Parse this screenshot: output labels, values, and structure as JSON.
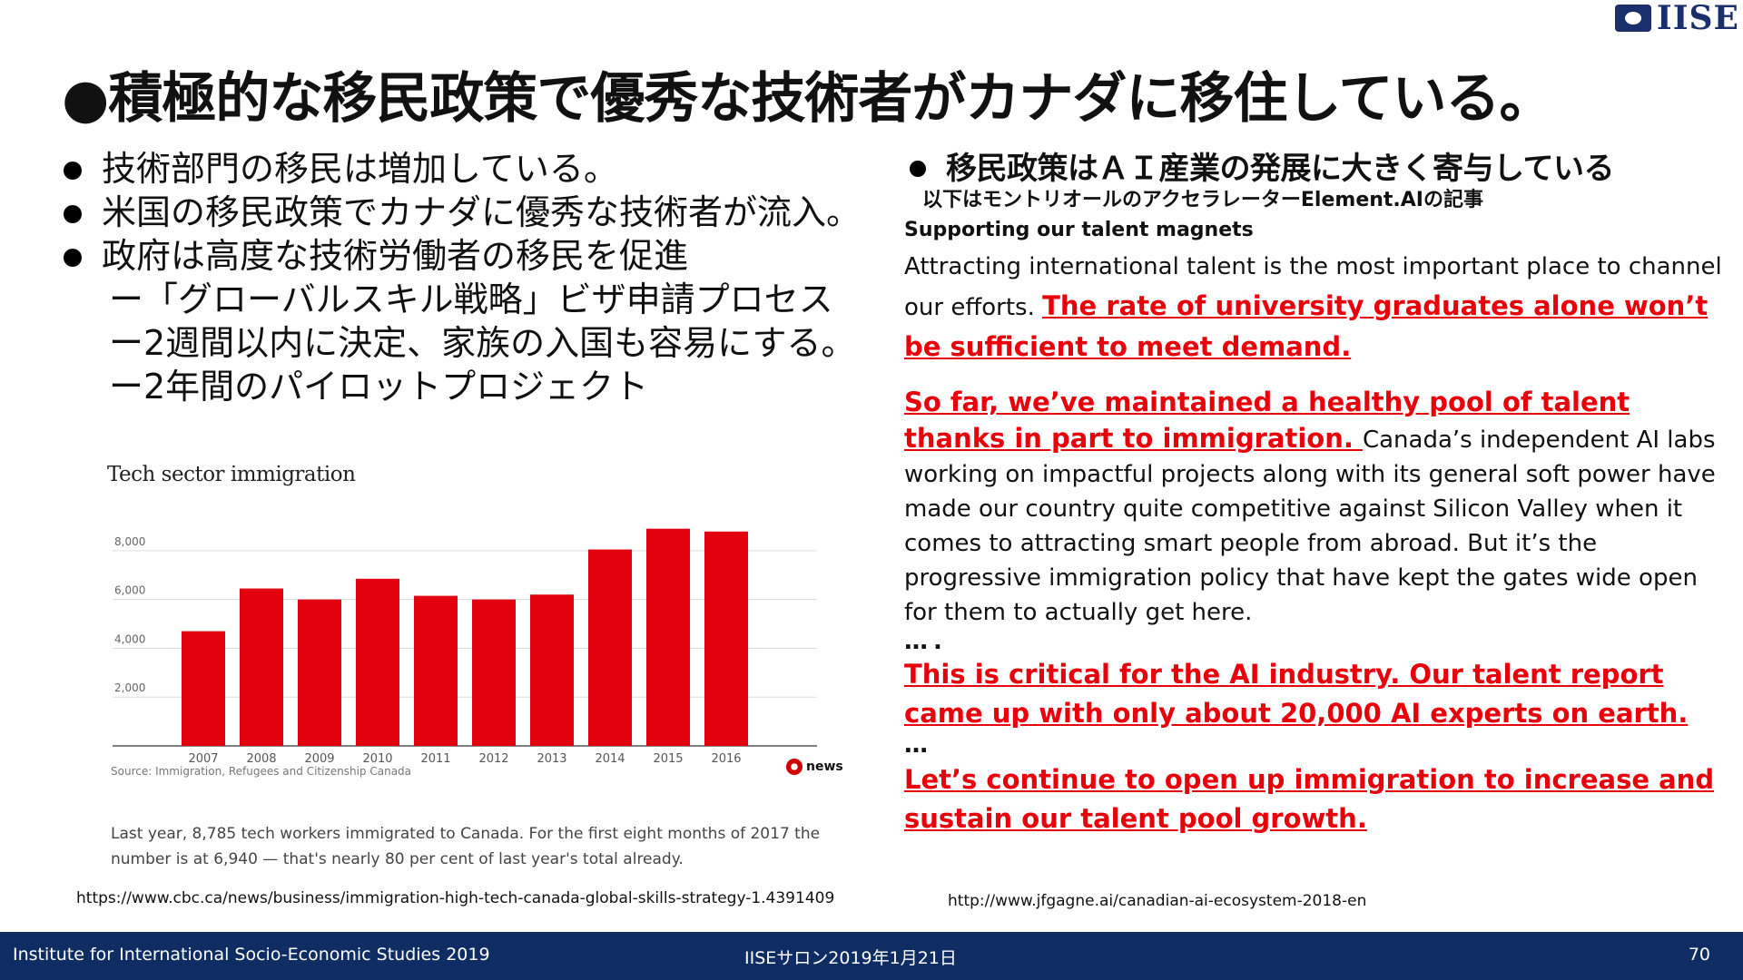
{
  "logo": {
    "text": "IISE"
  },
  "title": "●積極的な移民政策で優秀な技術者がカナダに移住している。",
  "left_bullets": [
    "技術部門の移民は増加している。",
    "米国の移民政策でカナダに優秀な技術者が流入。",
    "政府は高度な技術労働者の移民を促進"
  ],
  "left_subitems": [
    "ー「グローバルスキル戦略」ビザ申請プロセス",
    "ー2週間以内に決定、家族の入国も容易にする。",
    "ー2年間のパイロットプロジェクト"
  ],
  "chart_data": {
    "type": "bar",
    "title": "Tech sector immigration",
    "categories": [
      "2007",
      "2008",
      "2009",
      "2010",
      "2011",
      "2012",
      "2013",
      "2014",
      "2015",
      "2016"
    ],
    "values": [
      4700,
      6450,
      6000,
      6850,
      6150,
      6000,
      6200,
      8050,
      8900,
      8785
    ],
    "yticks": [
      2000,
      4000,
      6000,
      8000
    ],
    "ytick_labels": [
      "2,000",
      "4,000",
      "6,000",
      "8,000"
    ],
    "ylim": [
      0,
      9000
    ],
    "grid": true,
    "bar_color": "#e3000f",
    "source": "Source: Immigration, Refugees and Citizenship Canada",
    "brand": "news"
  },
  "chart_caption": "Last year, 8,785 tech workers immigrated to Canada. For the first eight months of 2017 the number is at 6,940 — that's nearly 80 per cent of last year's total already.",
  "url_left": "https://www.cbc.ca/news/business/immigration-high-tech-canada-global-skills-strategy-1.4391409",
  "right": {
    "heading": "移民政策はＡＩ産業の発展に大きく寄与している",
    "subheading": "以下はモントリオールのアクセラレーターElement.AIの記事",
    "supporting": "Supporting our talent magnets",
    "p1_normal": "Attracting international talent is the most important place to channel our efforts. ",
    "p1_red": "The rate of university graduates alone won’t be sufficient to meet demand.",
    "p2_red": "So far, we’ve maintained a healthy pool of talent thanks in part to immigration. ",
    "p2_normal": "Canada’s independent AI labs working on impactful projects along with its general soft power have made our country quite competitive against Silicon Valley when it comes to attracting smart people from abroad. But it’s the progressive immigration policy that have kept the gates wide open for them to actually get here.",
    "dots1": "….",
    "p3_red": "This is critical for the AI industry. Our talent report came up with only about 20,000 AI experts on earth.",
    "dots2": "…",
    "p4_red": "Let’s continue to open up immigration to increase and sustain our talent pool growth."
  },
  "url_right": "http://www.jfgagne.ai/canadian-ai-ecosystem-2018-en",
  "footer": {
    "left": "Institute for International Socio-Economic Studies 2019",
    "center": "IISEサロン2019年1月21日",
    "page": "70"
  },
  "colors": {
    "accent_red": "#e8000b",
    "footer_bg": "#0f2d62",
    "logo_blue": "#1b2f6b"
  }
}
